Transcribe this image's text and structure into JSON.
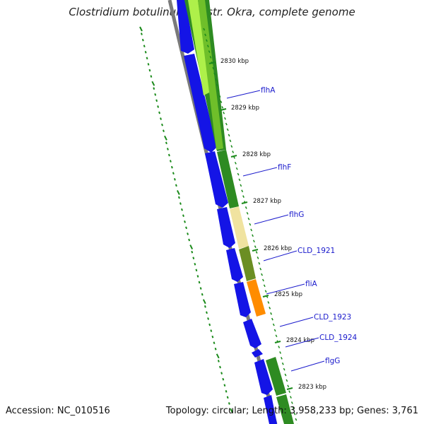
{
  "title": "Clostridium botulinum B1 str. Okra, complete genome",
  "footer": {
    "accession": "Accession: NC_010516",
    "summary": "Topology: circular; Length: 3,958,233 bp; Genes: 3,761"
  },
  "scale_ticks": [
    "2830 kbp",
    "2829 kbp",
    "2828 kbp",
    "2827 kbp",
    "2826 kbp",
    "2825 kbp",
    "2824 kbp",
    "2823 kbp"
  ],
  "genes": [
    "flhA",
    "flhF",
    "flhG",
    "CLD_1921",
    "fliA",
    "CLD_1923",
    "CLD_1924",
    "flgG"
  ],
  "colors": {
    "backbone": "#7a7a7a",
    "cds": "#1414e6",
    "dotted_ring": "#1a8a1a",
    "ticks": "#1a8a1a",
    "label_line": "#1a1acc"
  }
}
